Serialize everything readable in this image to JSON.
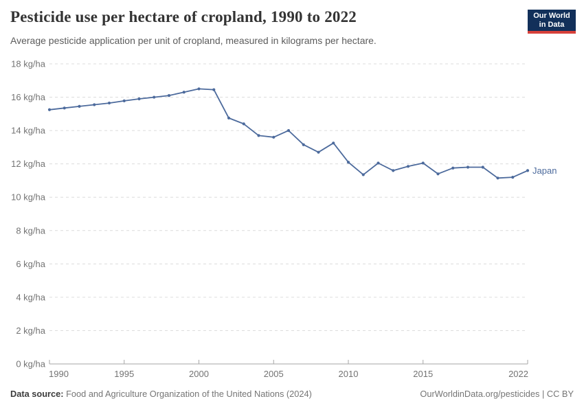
{
  "header": {
    "title": "Pesticide use per hectare of cropland, 1990 to 2022",
    "subtitle": "Average pesticide application per unit of cropland, measured in kilograms per hectare.",
    "logo": {
      "line1": "Our World",
      "line2": "in Data"
    }
  },
  "chart_data": {
    "type": "line",
    "title": "Pesticide use per hectare of cropland, 1990 to 2022",
    "xlabel": "",
    "ylabel": "kg/ha",
    "xlim": [
      1990,
      2022
    ],
    "ylim": [
      0,
      18
    ],
    "ytick_step": 2,
    "ytick_suffix": " kg/ha",
    "xticks": [
      1990,
      1995,
      2000,
      2005,
      2010,
      2015,
      2022
    ],
    "grid": "horizontal-dashed",
    "legend": "line-end-label",
    "series": [
      {
        "name": "Japan",
        "color": "#4c6a9c",
        "x": [
          1990,
          1991,
          1992,
          1993,
          1994,
          1995,
          1996,
          1997,
          1998,
          1999,
          2000,
          2001,
          2002,
          2003,
          2004,
          2005,
          2006,
          2007,
          2008,
          2009,
          2010,
          2011,
          2012,
          2013,
          2014,
          2015,
          2016,
          2017,
          2018,
          2019,
          2020,
          2021,
          2022
        ],
        "values": [
          15.25,
          15.35,
          15.45,
          15.55,
          15.65,
          15.78,
          15.9,
          16.0,
          16.1,
          16.3,
          16.5,
          16.45,
          14.75,
          14.4,
          13.7,
          13.6,
          14.0,
          13.15,
          12.7,
          13.25,
          12.1,
          11.35,
          12.05,
          11.6,
          11.85,
          12.05,
          11.4,
          11.75,
          11.8,
          11.8,
          11.15,
          11.2,
          11.6
        ]
      }
    ]
  },
  "footer": {
    "source_label": "Data source:",
    "source_text": "Food and Agriculture Organization of the United Nations (2024)",
    "credit": "OurWorldinData.org/pesticides | CC BY"
  },
  "colors": {
    "line": "#4c6a9c",
    "logo_bg": "#12305a",
    "logo_red": "#d7403a",
    "gridline": "#dcdcdc",
    "axis": "#a6a6a6",
    "tick_label": "#737373"
  }
}
